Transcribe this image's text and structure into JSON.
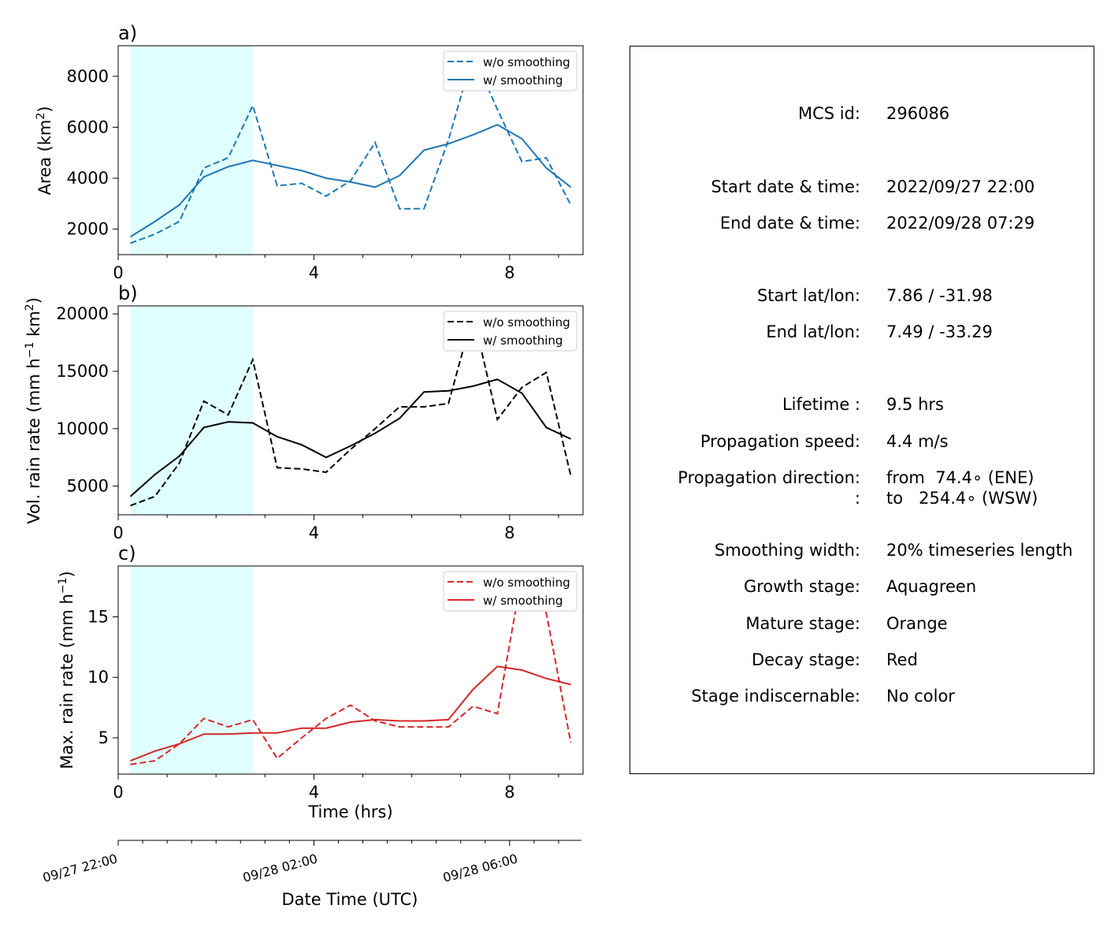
{
  "panels": [
    {
      "letter": "a)",
      "ylabel_main": "Area  (km",
      "ylabel_sup": "2",
      "ylabel_end": ")",
      "color": "#1f77b4",
      "legend": {
        "dashed": "w/o smoothing",
        "solid": "w/ smoothing"
      },
      "xticks": [
        "0",
        "4",
        "8"
      ],
      "yticks": [
        "2000",
        "4000",
        "6000",
        "8000"
      ]
    },
    {
      "letter": "b)",
      "ylabel_main": "Vol. rain rate (mm h",
      "ylabel_sup": "−1",
      "ylabel_mid": " km",
      "ylabel_sup2": "2",
      "ylabel_end": ")",
      "color": "#000000",
      "legend": {
        "dashed": "w/o smoothing",
        "solid": "w/ smoothing"
      },
      "xticks": [
        "0",
        "4",
        "8"
      ],
      "yticks": [
        "5000",
        "10000",
        "15000",
        "20000"
      ]
    },
    {
      "letter": "c)",
      "ylabel_main": "Max. rain rate  (mm h",
      "ylabel_sup": "−1",
      "ylabel_end": ")",
      "color": "#d62728",
      "legend": {
        "dashed": "w/o smoothing",
        "solid": "w/ smoothing"
      },
      "xticks": [
        "0",
        "4",
        "8"
      ],
      "yticks": [
        "5",
        "10",
        "15"
      ],
      "xlabel": "Time (hrs)"
    }
  ],
  "datetime_axis": {
    "ticks": [
      "09/27 22:00",
      "09/28 02:00",
      "09/28 06:00"
    ],
    "label": "Date Time (UTC)"
  },
  "chart_data": [
    {
      "type": "line",
      "panel": "a)",
      "xlim": [
        0,
        9.5
      ],
      "ylim": [
        1000,
        9200
      ],
      "growth_stage_shading": [
        0.25,
        2.75
      ],
      "shading_color": "#e0ffff",
      "x": [
        0.25,
        0.75,
        1.25,
        1.75,
        2.25,
        2.75,
        3.25,
        3.75,
        4.25,
        4.75,
        5.25,
        5.75,
        6.25,
        6.75,
        7.25,
        7.75,
        8.25,
        8.75,
        9.25
      ],
      "series": [
        {
          "name": "w/o smoothing",
          "style": "dashed",
          "values": [
            1450,
            1800,
            2300,
            4400,
            4800,
            6850,
            3700,
            3800,
            3300,
            3900,
            5400,
            2800,
            2800,
            5500,
            8850,
            6700,
            4650,
            4800,
            2950
          ]
        },
        {
          "name": "w/ smoothing",
          "style": "solid",
          "values": [
            1700,
            2300,
            2950,
            4050,
            4450,
            4700,
            4500,
            4300,
            4000,
            3850,
            3650,
            4100,
            5100,
            5350,
            5700,
            6100,
            5550,
            4400,
            3650
          ]
        }
      ]
    },
    {
      "type": "line",
      "panel": "b)",
      "xlim": [
        0,
        9.5
      ],
      "ylim": [
        2500,
        20700
      ],
      "growth_stage_shading": [
        0.25,
        2.75
      ],
      "shading_color": "#e0ffff",
      "x": [
        0.25,
        0.75,
        1.25,
        1.75,
        2.25,
        2.75,
        3.25,
        3.75,
        4.25,
        4.75,
        5.25,
        5.75,
        6.25,
        6.75,
        7.25,
        7.75,
        8.25,
        8.75,
        9.25
      ],
      "series": [
        {
          "name": "w/o smoothing",
          "style": "dashed",
          "values": [
            3300,
            4100,
            7000,
            12400,
            11200,
            16000,
            6600,
            6500,
            6200,
            8200,
            10000,
            11900,
            11900,
            12200,
            20000,
            10800,
            13600,
            14900,
            5900
          ]
        },
        {
          "name": "w/ smoothing",
          "style": "solid",
          "values": [
            4100,
            6000,
            7600,
            10100,
            10600,
            10500,
            9300,
            8600,
            7500,
            8500,
            9600,
            10900,
            13200,
            13300,
            13700,
            14300,
            13100,
            10100,
            9100
          ]
        }
      ]
    },
    {
      "type": "line",
      "panel": "c)",
      "xlim": [
        0,
        9.5
      ],
      "ylim": [
        2,
        19.2
      ],
      "growth_stage_shading": [
        0.25,
        2.75
      ],
      "shading_color": "#e0ffff",
      "x": [
        0.25,
        0.75,
        1.25,
        1.75,
        2.25,
        2.75,
        3.25,
        3.75,
        4.25,
        4.75,
        5.25,
        5.75,
        6.25,
        6.75,
        7.25,
        7.75,
        8.25,
        8.75,
        9.25
      ],
      "series": [
        {
          "name": "w/o smoothing",
          "style": "dashed",
          "values": [
            2.8,
            3.1,
            4.5,
            6.6,
            5.9,
            6.5,
            3.3,
            5.0,
            6.6,
            7.7,
            6.4,
            5.9,
            5.9,
            5.9,
            7.6,
            7.0,
            18.5,
            15.3,
            4.6
          ]
        },
        {
          "name": "w/ smoothing",
          "style": "solid",
          "values": [
            3.1,
            3.9,
            4.5,
            5.3,
            5.3,
            5.4,
            5.4,
            5.8,
            5.8,
            6.3,
            6.5,
            6.4,
            6.4,
            6.5,
            9.0,
            10.9,
            10.6,
            9.9,
            9.4
          ]
        }
      ]
    }
  ],
  "info_panel": {
    "rows": [
      {
        "label": "MCS id:",
        "value": "296086"
      },
      {
        "label": "Start date & time:",
        "value": "2022/09/27 22:00"
      },
      {
        "label": "End date & time:",
        "value": "2022/09/28 07:29"
      },
      {
        "label": "Start lat/lon:",
        "value": "7.86 / -31.98"
      },
      {
        "label": "End lat/lon:",
        "value": "7.49 / -33.29"
      },
      {
        "label": "Lifetime :",
        "value": "9.5 hrs"
      },
      {
        "label": "Propagation speed:",
        "value": "4.4 m/s"
      },
      {
        "label": "Propagation direction:",
        "value": "from  74.4∘ (ENE)"
      },
      {
        "label": ":",
        "value": "to   254.4∘ (WSW)"
      },
      {
        "label": "Smoothing width:",
        "value": "20% timeseries length"
      },
      {
        "label": "Growth stage:",
        "value": "Aquagreen"
      },
      {
        "label": "Mature stage:",
        "value": "Orange"
      },
      {
        "label": "Decay stage:",
        "value": "Red"
      },
      {
        "label": "Stage indiscernable:",
        "value": "No color"
      }
    ]
  }
}
